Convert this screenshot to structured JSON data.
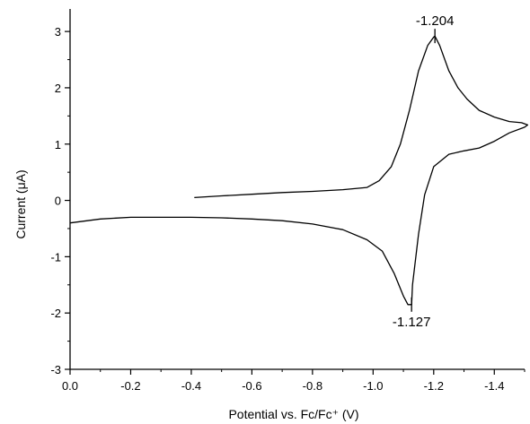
{
  "chart_data": {
    "type": "line",
    "title": "",
    "xlabel": "Potential vs. Fc/Fc⁺ (V)",
    "ylabel": "Current (μA)",
    "xlim": [
      0.0,
      -1.5
    ],
    "ylim": [
      -3,
      3.4
    ],
    "x_ticks": [
      "0.0",
      "-0.2",
      "-0.4",
      "-0.6",
      "-0.8",
      "-1.0",
      "-1.2",
      "-1.4"
    ],
    "y_ticks": [
      "3",
      "2",
      "1",
      "0",
      "-1",
      "-2",
      "-3"
    ],
    "grid": false,
    "legend": "none",
    "line_color": "#000000",
    "series": [
      {
        "x": [
          -0.41,
          -0.5,
          -0.6,
          -0.7,
          -0.8,
          -0.9,
          -0.98,
          -1.02,
          -1.06,
          -1.09,
          -1.12,
          -1.15,
          -1.18,
          -1.2,
          -1.204,
          -1.22,
          -1.25,
          -1.28,
          -1.31,
          -1.35,
          -1.4,
          -1.45,
          -1.49,
          -1.51,
          -1.5,
          -1.45,
          -1.4,
          -1.35,
          -1.3,
          -1.25,
          -1.2,
          -1.17,
          -1.15,
          -1.13,
          -1.127,
          -1.115,
          -1.1,
          -1.07,
          -1.03,
          -0.98,
          -0.9,
          -0.8,
          -0.7,
          -0.6,
          -0.5,
          -0.4,
          -0.3,
          -0.2,
          -0.1,
          0.0
        ],
        "y": [
          0.05,
          0.08,
          0.11,
          0.14,
          0.16,
          0.19,
          0.23,
          0.35,
          0.6,
          1.0,
          1.6,
          2.3,
          2.75,
          2.9,
          2.92,
          2.75,
          2.3,
          2.0,
          1.8,
          1.6,
          1.48,
          1.4,
          1.38,
          1.34,
          1.3,
          1.2,
          1.05,
          0.93,
          0.88,
          0.82,
          0.6,
          0.1,
          -0.6,
          -1.5,
          -1.85,
          -1.85,
          -1.7,
          -1.3,
          -0.9,
          -0.7,
          -0.52,
          -0.42,
          -0.36,
          -0.33,
          -0.31,
          -0.3,
          -0.3,
          -0.3,
          -0.33,
          -0.4
        ]
      }
    ],
    "annotations": [
      {
        "text": "-1.204",
        "x": -1.204,
        "y": 2.92,
        "position": "above"
      },
      {
        "text": "-1.127",
        "x": -1.127,
        "y": -1.85,
        "position": "below"
      }
    ]
  }
}
